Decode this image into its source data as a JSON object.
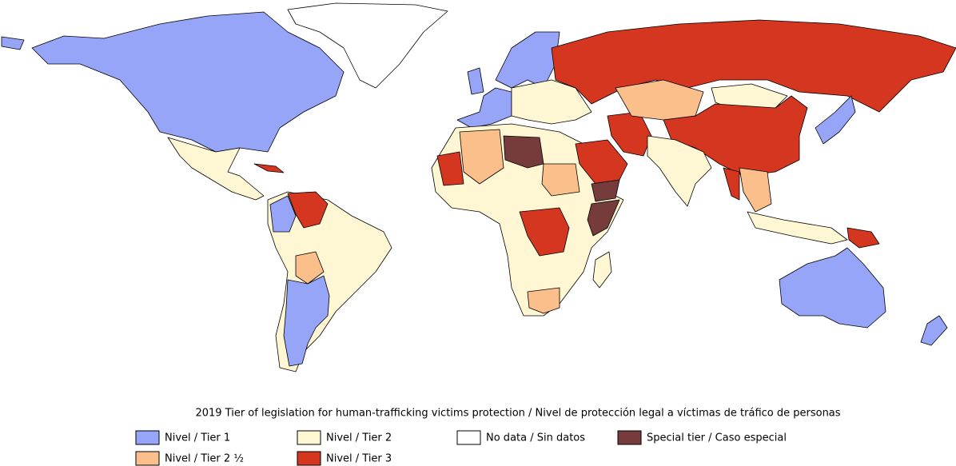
{
  "map": {
    "title": "2019 Tier of legislation for human-trafficking victims protection / Nivel de protección legal a víctimas de tráfico de personas",
    "legend": [
      {
        "label": "Nivel / Tier 1",
        "color": "#97a5f8"
      },
      {
        "label": "Nivel / Tier 2",
        "color": "#fff6d4"
      },
      {
        "label": "No data / Sin datos",
        "color": "#ffffff"
      },
      {
        "label": "Special tier / Caso especial",
        "color": "#763b3b"
      },
      {
        "label": "Nivel / Tier 2 ½",
        "color": "#fbbf8c"
      },
      {
        "label": "Nivel / Tier 3",
        "color": "#d5361f"
      }
    ]
  }
}
